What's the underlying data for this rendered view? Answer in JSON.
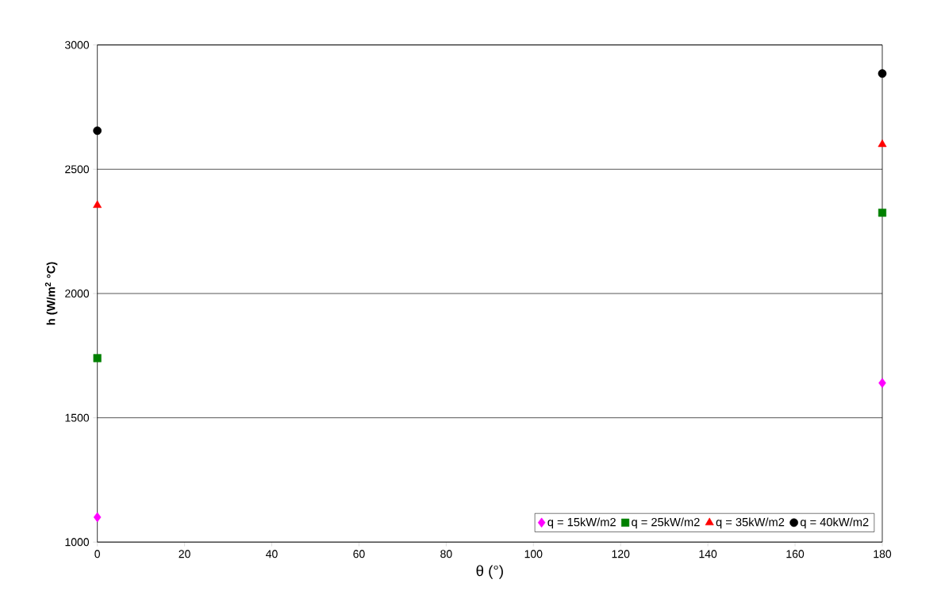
{
  "chart_data": {
    "type": "scatter",
    "xlabel": "θ (°)",
    "ylabel": "h (W/m$^{2}$ °C)",
    "x": [
      0,
      180
    ],
    "series": [
      {
        "name": "q = 15kW/m2",
        "color": "#ff00ff",
        "marker": "diamond",
        "values": [
          1100,
          1640
        ]
      },
      {
        "name": "q = 25kW/m2",
        "color": "#008000",
        "marker": "square",
        "values": [
          1740,
          2325
        ]
      },
      {
        "name": "q = 35kW/m2",
        "color": "#ff0000",
        "marker": "triangle",
        "values": [
          2355,
          2600
        ]
      },
      {
        "name": "q = 40kW/m2",
        "color": "#000000",
        "marker": "circle",
        "values": [
          2655,
          2885
        ]
      }
    ],
    "xlim": [
      0,
      180
    ],
    "ylim": [
      1000,
      3000
    ],
    "xticks": [
      0,
      20,
      40,
      60,
      80,
      100,
      120,
      140,
      160,
      180
    ],
    "yticks": [
      1000,
      1500,
      2000,
      2500,
      3000
    ],
    "grid": "y",
    "legend": "bottom right"
  }
}
